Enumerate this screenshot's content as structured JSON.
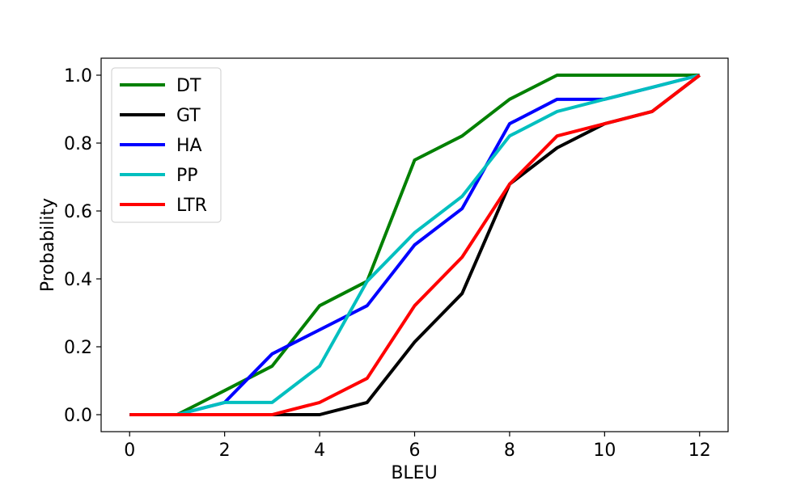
{
  "chart_data": {
    "type": "line",
    "title": "",
    "xlabel": "BLEU",
    "ylabel": "Probability",
    "xlim": [
      -0.6,
      12.6
    ],
    "ylim": [
      -0.05,
      1.05
    ],
    "xticks": [
      0,
      2,
      4,
      6,
      8,
      10,
      12
    ],
    "yticks": [
      0.0,
      0.2,
      0.4,
      0.6,
      0.8,
      1.0
    ],
    "ytick_labels": [
      "0.0",
      "0.2",
      "0.4",
      "0.6",
      "0.8",
      "1.0"
    ],
    "x": [
      0,
      1,
      2,
      3,
      4,
      5,
      6,
      7,
      8,
      9,
      10,
      11,
      12
    ],
    "grid": false,
    "legend_position": "upper-left",
    "series": [
      {
        "name": "DT",
        "color": "#008000",
        "values": [
          0,
          0,
          0.071,
          0.143,
          0.321,
          0.393,
          0.75,
          0.821,
          0.929,
          1.0,
          1.0,
          1.0,
          1.0
        ]
      },
      {
        "name": "GT",
        "color": "#000000",
        "values": [
          0,
          0,
          0,
          0,
          0,
          0.036,
          0.214,
          0.357,
          0.679,
          0.786,
          0.857,
          0.893,
          1.0
        ]
      },
      {
        "name": "HA",
        "color": "#0000ff",
        "values": [
          0,
          0,
          0.036,
          0.179,
          0.25,
          0.321,
          0.5,
          0.607,
          0.857,
          0.929,
          0.929,
          0.964,
          1.0
        ]
      },
      {
        "name": "PP",
        "color": "#00bfbf",
        "values": [
          0,
          0,
          0.036,
          0.036,
          0.143,
          0.393,
          0.536,
          0.643,
          0.821,
          0.893,
          0.929,
          0.964,
          1.0
        ]
      },
      {
        "name": "LTR",
        "color": "#ff0000",
        "values": [
          0,
          0,
          0,
          0,
          0.036,
          0.107,
          0.321,
          0.464,
          0.679,
          0.821,
          0.857,
          0.893,
          1.0
        ]
      }
    ]
  }
}
